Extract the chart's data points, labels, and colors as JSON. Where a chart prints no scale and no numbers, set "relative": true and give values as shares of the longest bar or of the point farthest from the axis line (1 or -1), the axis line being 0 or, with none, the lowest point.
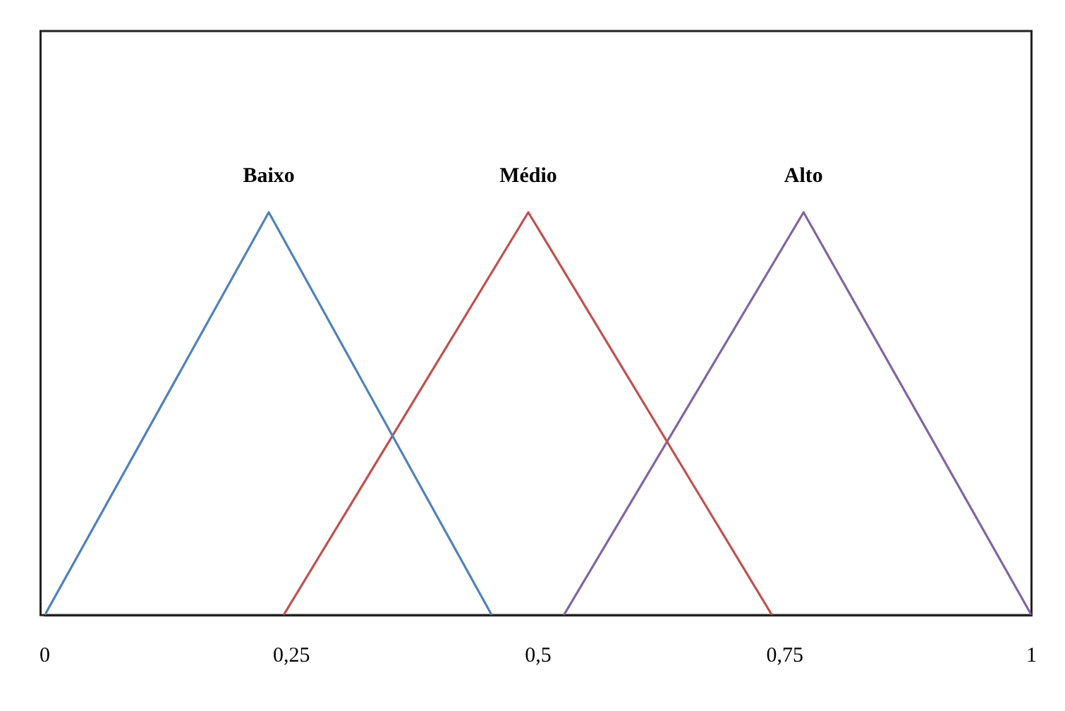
{
  "chart_data": {
    "type": "line",
    "relative": true,
    "xlim": [
      0,
      1
    ],
    "xticks": [
      0,
      {
        "value": 0.25,
        "label": "0,25"
      },
      {
        "value": 0.5,
        "label": "0,5"
      },
      {
        "value": 0.75,
        "label": "0,75"
      },
      1
    ],
    "series": [
      {
        "name": "Baixo",
        "color": "#4f81bd",
        "x": [
          0,
          0.227,
          0.453
        ],
        "values": [
          0,
          1,
          0
        ]
      },
      {
        "name": "Médio",
        "color": "#c0504d",
        "x": [
          0.242,
          0.49,
          0.737
        ],
        "values": [
          0,
          1,
          0
        ]
      },
      {
        "name": "Alto",
        "color": "#8064a2",
        "x": [
          0.526,
          0.769,
          1
        ],
        "values": [
          0,
          1,
          0
        ]
      }
    ],
    "grid": false,
    "legend": false,
    "marker": "none",
    "line_style": "solid"
  }
}
